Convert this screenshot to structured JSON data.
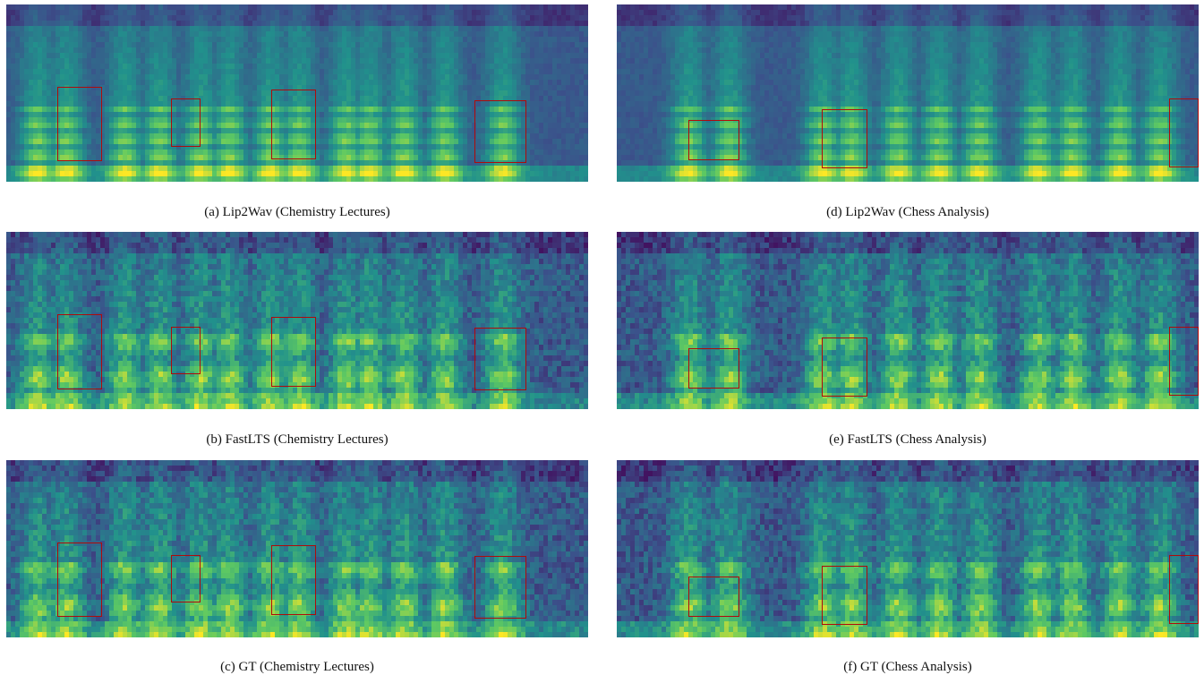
{
  "figure": {
    "panels": [
      {
        "id": "a",
        "caption": "(a) Lip2Wav (Chemistry Lectures)",
        "style": "smooth",
        "seed": 11,
        "cols": "chem"
      },
      {
        "id": "b",
        "caption": "(b) FastLTS (Chemistry Lectures)",
        "style": "noisy",
        "seed": 23,
        "cols": "chem"
      },
      {
        "id": "c",
        "caption": "(c) GT (Chemistry Lectures)",
        "style": "noisy",
        "seed": 37,
        "cols": "chem"
      },
      {
        "id": "d",
        "caption": "(d) Lip2Wav (Chess Analysis)",
        "style": "smooth",
        "seed": 41,
        "cols": "chess"
      },
      {
        "id": "e",
        "caption": "(e) FastLTS (Chess Analysis)",
        "style": "noisy",
        "seed": 53,
        "cols": "chess"
      },
      {
        "id": "f",
        "caption": "(f) GT (Chess Analysis)",
        "style": "noisy",
        "seed": 67,
        "cols": "chess"
      }
    ],
    "colormap": [
      "#440154",
      "#3b528b",
      "#21918c",
      "#5ec962",
      "#fde725"
    ],
    "highlight_color": "#b00a0a"
  }
}
